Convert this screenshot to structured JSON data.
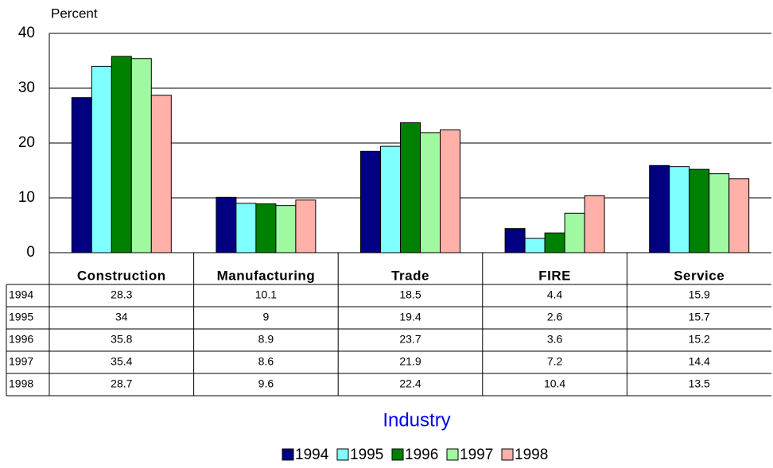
{
  "chart_data": {
    "type": "bar",
    "y_label": "Percent",
    "x_label": "Industry",
    "categories": [
      "Construction",
      "Manufacturing",
      "Trade",
      "FIRE",
      "Service"
    ],
    "series": [
      {
        "name": "1994",
        "color": "#000080",
        "values": [
          28.3,
          10.1,
          18.5,
          4.4,
          15.9
        ]
      },
      {
        "name": "1995",
        "color": "#80ffff",
        "values": [
          34,
          9,
          19.4,
          2.6,
          15.7
        ]
      },
      {
        "name": "1996",
        "color": "#008000",
        "values": [
          35.8,
          8.9,
          23.7,
          3.6,
          15.2
        ]
      },
      {
        "name": "1997",
        "color": "#a0f8a0",
        "values": [
          35.4,
          8.6,
          21.9,
          7.2,
          14.4
        ]
      },
      {
        "name": "1998",
        "color": "#ffb0a8",
        "values": [
          28.7,
          9.6,
          22.4,
          10.4,
          13.5
        ]
      }
    ],
    "ylim": [
      0,
      40
    ],
    "yticks": [
      0,
      10,
      20,
      30,
      40
    ],
    "grid": true
  }
}
